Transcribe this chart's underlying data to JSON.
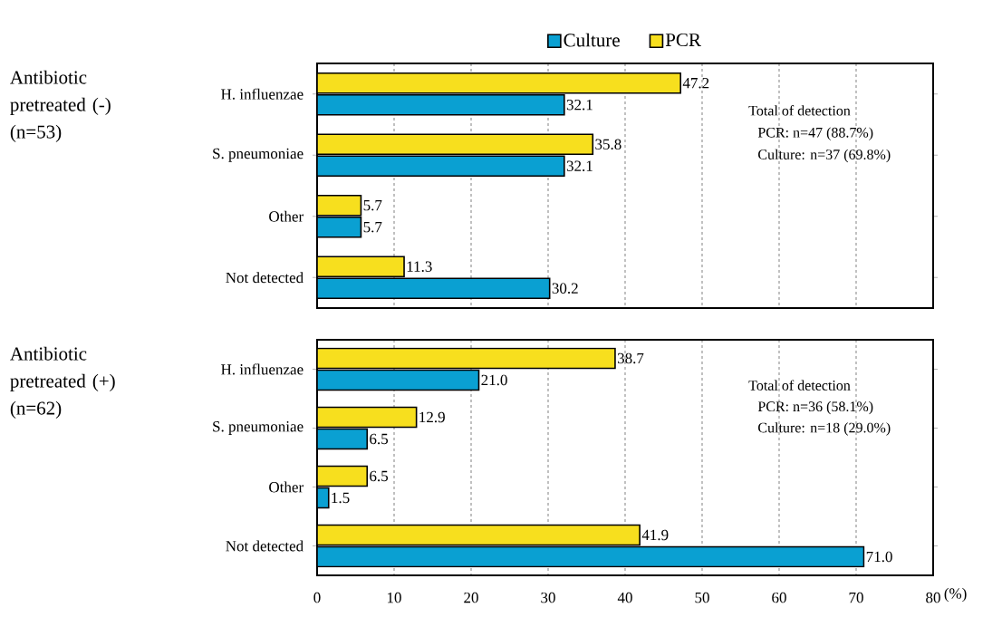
{
  "chart_data": [
    {
      "type": "bar",
      "orientation": "horizontal",
      "title": "Antibiotic pretreated (-) (n=53)",
      "categories": [
        "H. influenzae",
        "S. pneumoniae",
        "Other",
        "Not detected"
      ],
      "series": [
        {
          "name": "PCR",
          "color": "#f7df1e",
          "values": [
            47.2,
            35.8,
            5.7,
            11.3
          ],
          "value_labels": [
            "47.2",
            "35.8",
            "5.7",
            "11.3"
          ]
        },
        {
          "name": "Culture",
          "color": "#0aa0d2",
          "values": [
            32.1,
            32.1,
            5.7,
            30.2
          ],
          "value_labels": [
            "32.1",
            "32.1",
            "5.7",
            "30.2"
          ]
        }
      ],
      "annotations": [
        "Total of detection",
        "PCR: n=47 (88.7%)",
        "Culture: n=37 (69.8%)"
      ],
      "xlim": [
        0,
        80
      ],
      "xticks": [
        0,
        10,
        20,
        30,
        40,
        50,
        60,
        70,
        80
      ],
      "grid": "x",
      "legend": "top",
      "tick_labels": "y"
    },
    {
      "type": "bar",
      "orientation": "horizontal",
      "title": "Antibiotic pretreated (+) (n=62)",
      "categories": [
        "H. influenzae",
        "S. pneumoniae",
        "Other",
        "Not detected"
      ],
      "series": [
        {
          "color": "#f7df1e",
          "values": [
            38.7,
            12.9,
            6.5,
            41.9
          ],
          "value_labels": [
            "38.7",
            "12.9",
            "6.5",
            "41.9"
          ]
        },
        {
          "color": "#0aa0d2",
          "values": [
            21.0,
            6.5,
            1.5,
            71.0
          ],
          "value_labels": [
            "21.0",
            "6.5",
            "1.5",
            "71.0"
          ]
        }
      ],
      "annotations": [
        "Total of detection",
        "PCR: n=36 (58.1%)",
        "Culture: n=18 (29.0%)"
      ],
      "xlabel": "(%)",
      "xlim": [
        0,
        80
      ],
      "xticks": [
        0,
        10,
        20,
        30,
        40,
        50,
        60,
        70,
        80
      ],
      "grid": "x"
    }
  ]
}
